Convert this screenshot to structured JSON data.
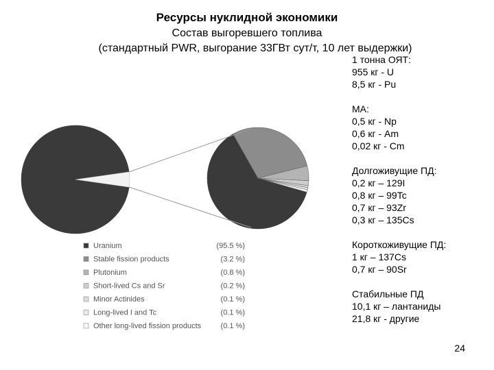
{
  "title": "Ресурсы нуклидной экономики",
  "subtitle": "Состав выгоревшего топлива",
  "subtitle2": "(стандартный PWR, выгорание 33ГВт сут/т, 10 лет выдержки)",
  "chart_data": {
    "type": "pie",
    "unit": "%",
    "slices": [
      {
        "label": "Uranium",
        "value": 95.5,
        "display": "(95.5 %)",
        "color": "#3a3a3a"
      },
      {
        "label": "Stable fission products",
        "value": 3.2,
        "display": "(3.2 %)",
        "color": "#8c8c8c"
      },
      {
        "label": "Plutonium",
        "value": 0.8,
        "display": "(0.8 %)",
        "color": "#b4b4b4"
      },
      {
        "label": "Short-lived Cs and Sr",
        "value": 0.2,
        "display": "(0.2 %)",
        "color": "#cecece"
      },
      {
        "label": "Minor Actinides",
        "value": 0.1,
        "display": "(0.1 %)",
        "color": "#dcdcdc"
      },
      {
        "label": "Long-lived I and Tc",
        "value": 0.1,
        "display": "(0.1 %)",
        "color": "#ebebeb"
      },
      {
        "label": "Other long-lived fission products",
        "value": 0.1,
        "display": "(0.1 %)",
        "color": "#f7f7f7"
      }
    ],
    "legend_position": "bottom-left",
    "exploded_detail": "non-uranium fractions magnified"
  },
  "right_blocks": [
    [
      "1 тонна ОЯТ:",
      "955 кг - U",
      "8,5 кг - Pu"
    ],
    [
      "МА:",
      "0,5 кг - Np",
      "0,6 кг - Am",
      "0,02 кг - Cm"
    ],
    [
      "Долгоживущие ПД:",
      "0,2 кг – 129I",
      "0,8 кг – 99Tc",
      "0,7 кг – 93Zr",
      "0,3 кг – 135Cs"
    ],
    [
      "Короткоживущие ПД:",
      "1 кг – 137Cs",
      "0,7 кг – 90Sr"
    ],
    [
      "Стабильные ПД",
      "10,1 кг – лантаниды",
      "21,8 кг - другие"
    ]
  ],
  "page_number": "24"
}
